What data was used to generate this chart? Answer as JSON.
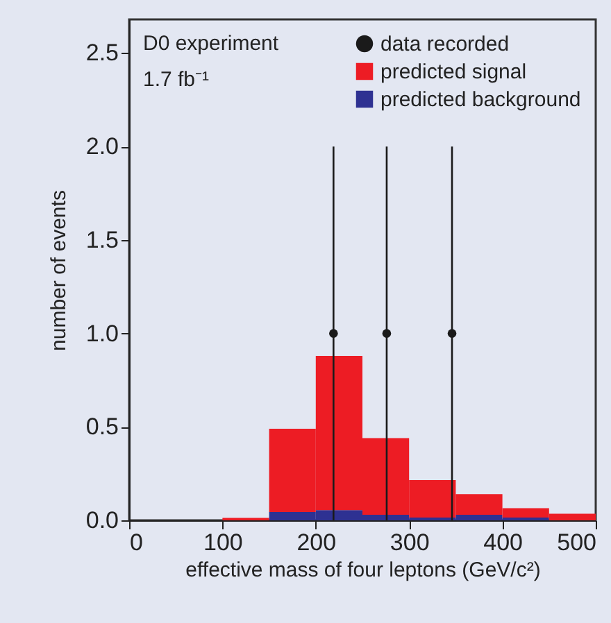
{
  "chart_data": {
    "type": "bar",
    "xlabel": "effective mass of four leptons (GeV/c²)",
    "ylabel": "number of events",
    "annotations": [
      "D0 experiment",
      "1.7 fb⁻¹"
    ],
    "x": [
      125,
      175,
      225,
      275,
      325,
      375,
      425,
      475
    ],
    "stacked": true,
    "series": [
      {
        "name": "predicted background",
        "color": "#2e3192",
        "values": [
          0,
          0.045,
          0.055,
          0.03,
          0.015,
          0.03,
          0.015,
          0
        ]
      },
      {
        "name": "predicted signal",
        "color": "#ed1c24",
        "values": [
          0.013,
          0.445,
          0.825,
          0.41,
          0.2,
          0.11,
          0.05,
          0.035
        ]
      },
      {
        "name": "data recorded",
        "type": "scatter",
        "color": "#1a1a1a",
        "x": [
          219,
          276,
          346
        ],
        "values": [
          1,
          1,
          1
        ],
        "errors": [
          [
            0,
            2
          ],
          [
            0,
            2
          ],
          [
            0,
            2
          ]
        ]
      }
    ],
    "xlim": [
      0,
      500
    ],
    "ylim": [
      0,
      2.68
    ],
    "xticks": [
      0,
      100,
      200,
      300,
      400,
      500
    ],
    "yticks": [
      {
        "value": 0,
        "label": "0.0"
      },
      {
        "value": 0.5,
        "label": "0.5"
      },
      {
        "value": 1,
        "label": "1.0"
      },
      {
        "value": 1.5,
        "label": "1.5"
      },
      {
        "value": 2,
        "label": "2.0"
      },
      {
        "value": 2.5,
        "label": "2.5"
      }
    ],
    "legend": "top right",
    "grid": false,
    "marker": "circle"
  }
}
